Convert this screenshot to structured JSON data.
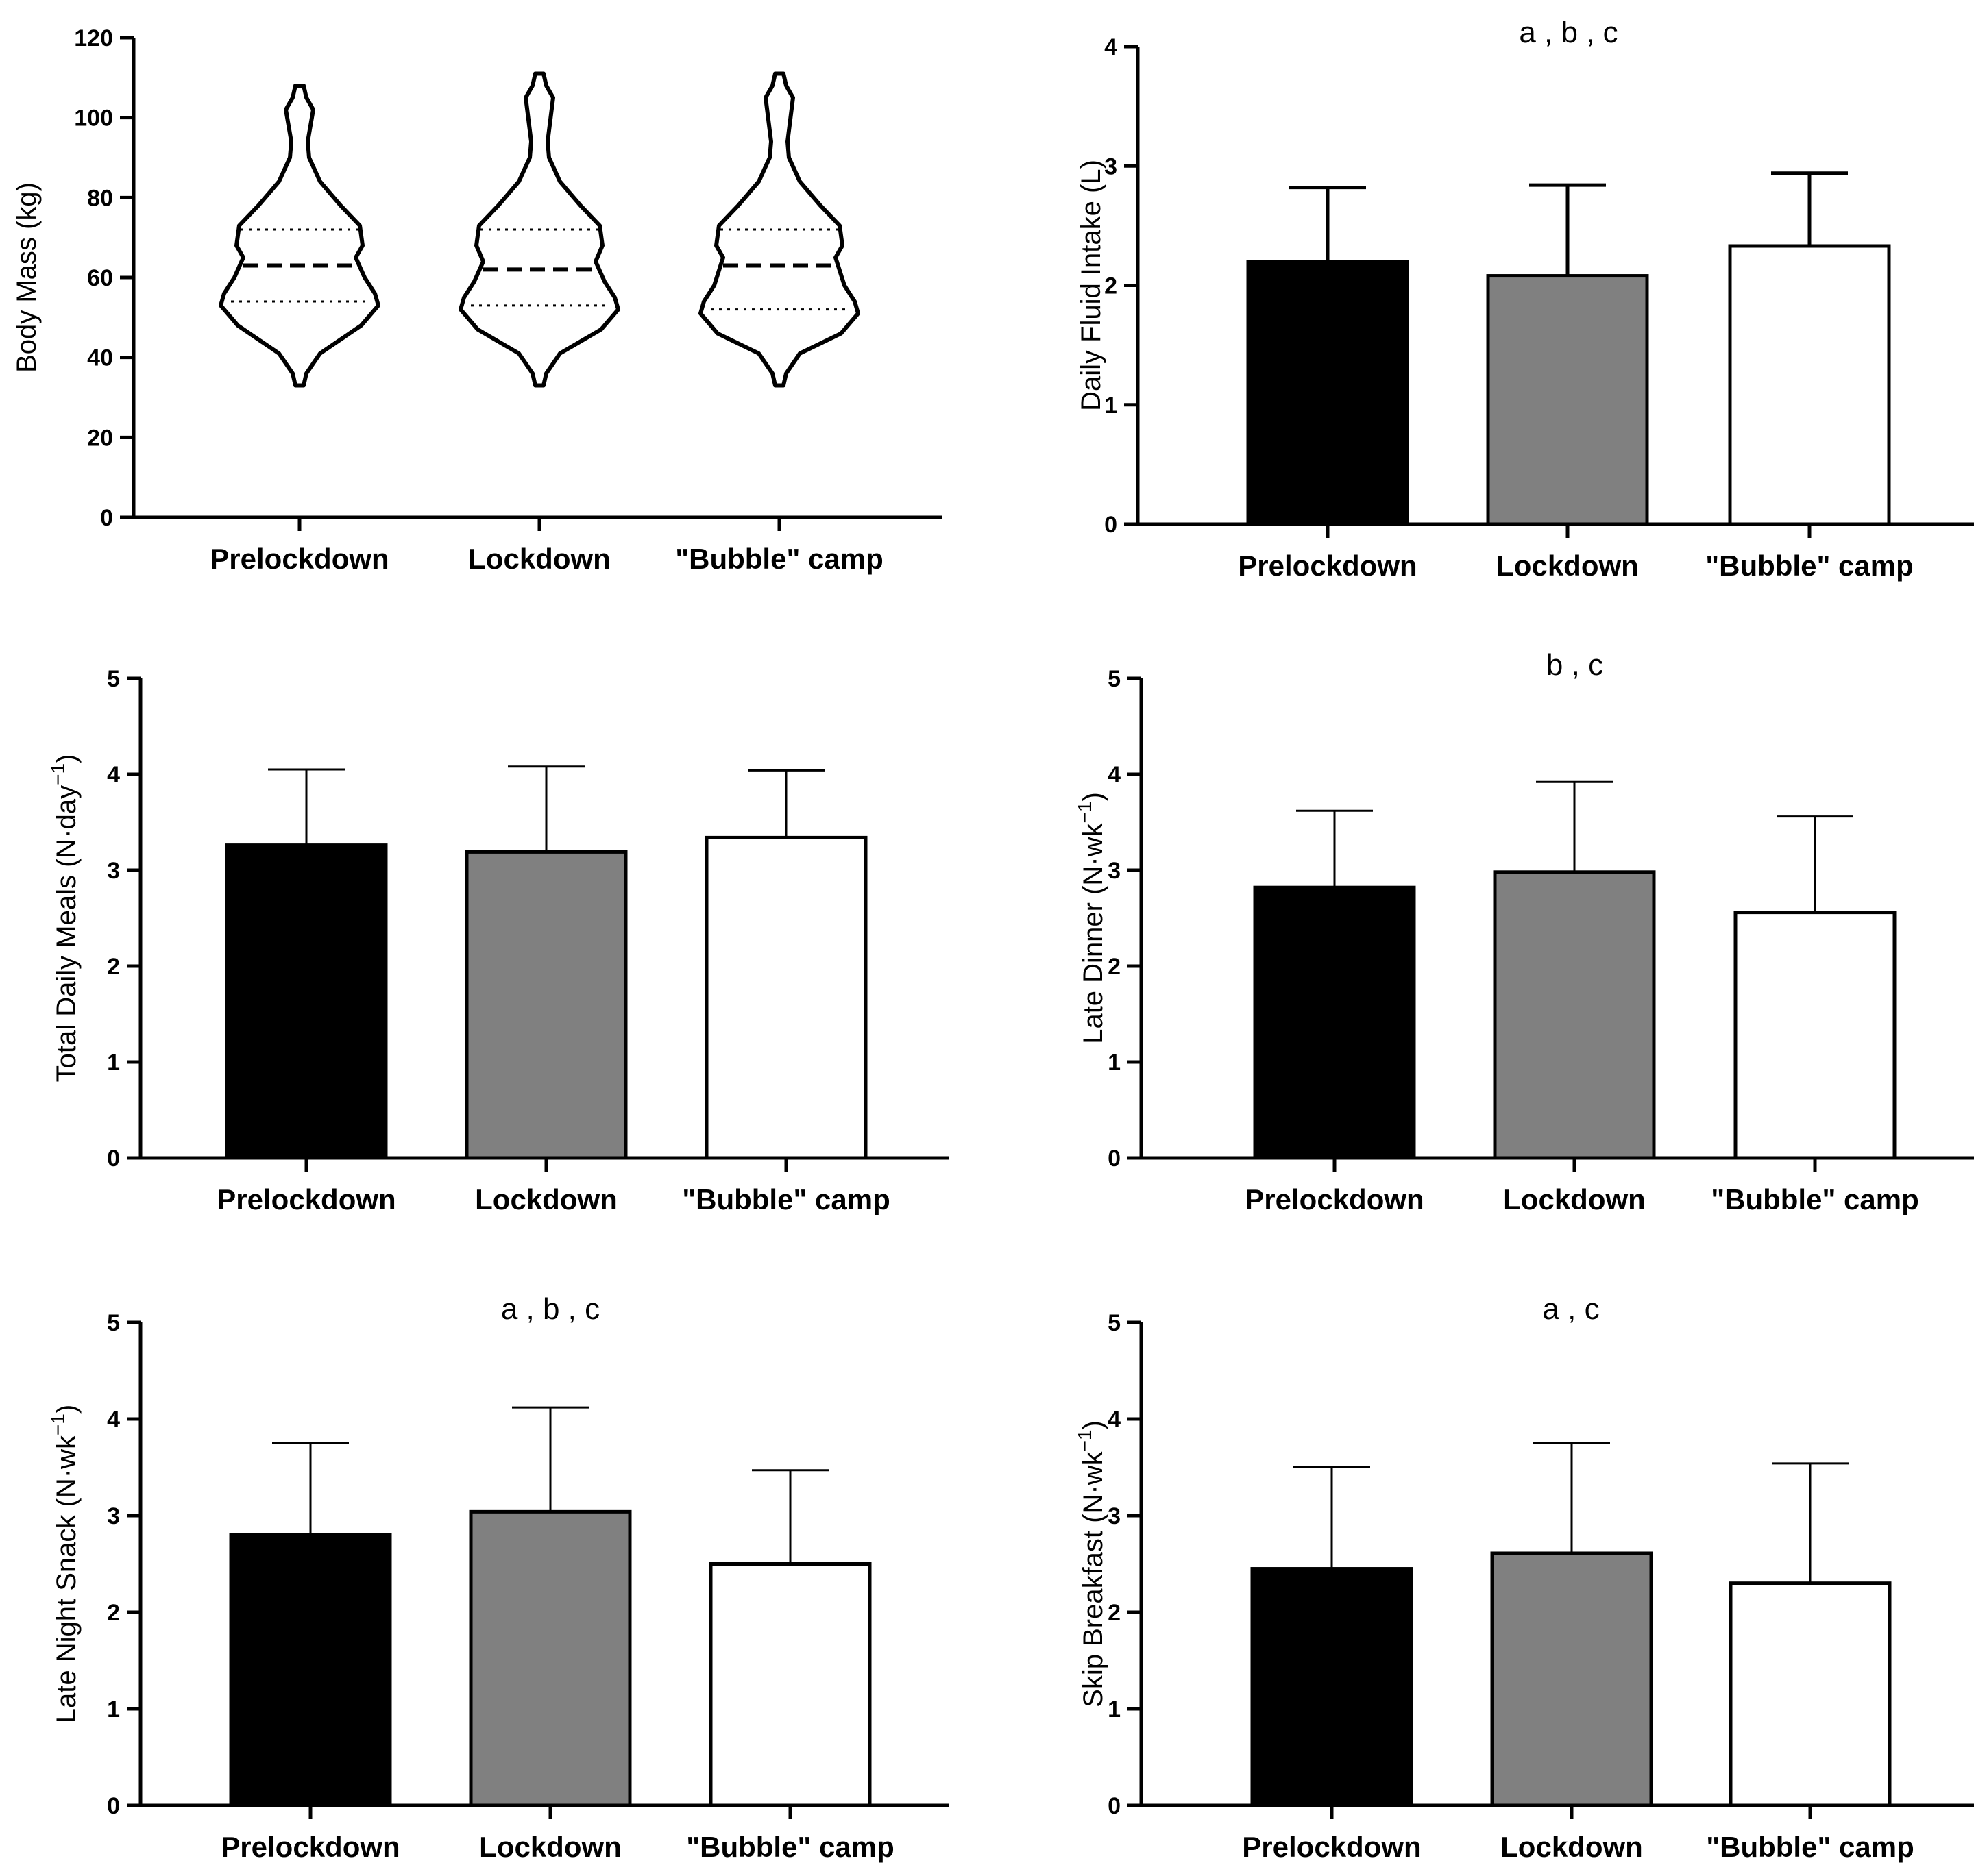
{
  "chart_data": [
    {
      "type": "violin",
      "categories": [
        "Prelockdown",
        "Lockdown",
        "\"Bubble\" camp"
      ],
      "ylabel": "Body Mass (kg)",
      "ylim": [
        0,
        120
      ],
      "yticks": [
        0,
        20,
        40,
        60,
        80,
        100,
        120
      ],
      "annotation": "",
      "series": [
        {
          "category": "Prelockdown",
          "median": 63,
          "q1": 54,
          "q3": 72,
          "min": 33,
          "max": 108
        },
        {
          "category": "Lockdown",
          "median": 62,
          "q1": 53,
          "q3": 72,
          "min": 33,
          "max": 111
        },
        {
          "category": "\"Bubble\" camp",
          "median": 63,
          "q1": 52,
          "q3": 72,
          "min": 33,
          "max": 111
        }
      ]
    },
    {
      "type": "bar",
      "categories": [
        "Prelockdown",
        "Lockdown",
        "\"Bubble\" camp"
      ],
      "values": [
        2.2,
        2.08,
        2.33
      ],
      "errors": [
        0.62,
        0.76,
        0.61
      ],
      "ylabel": "Daily Fluid Intake (L)",
      "ylim": [
        0,
        4
      ],
      "yticks": [
        0,
        1,
        2,
        3,
        4
      ],
      "annotation": "a , b , c",
      "colors": [
        "#000000",
        "#808080",
        "#ffffff"
      ]
    },
    {
      "type": "bar",
      "categories": [
        "Prelockdown",
        "Lockdown",
        "\"Bubble\" camp"
      ],
      "values": [
        3.26,
        3.19,
        3.34
      ],
      "errors": [
        0.79,
        0.89,
        0.7
      ],
      "ylabel": "Total Daily Meals (N·day",
      "ylabel_sup": "−1",
      "ylabel_suffix": ")",
      "ylim": [
        0,
        5
      ],
      "yticks": [
        0,
        1,
        2,
        3,
        4,
        5
      ],
      "annotation": "",
      "colors": [
        "#000000",
        "#808080",
        "#ffffff"
      ]
    },
    {
      "type": "bar",
      "categories": [
        "Prelockdown",
        "Lockdown",
        "\"Bubble\" camp"
      ],
      "values": [
        2.82,
        2.98,
        2.56
      ],
      "errors": [
        0.8,
        0.94,
        1.0
      ],
      "ylabel": "Late Dinner (N·wk",
      "ylabel_sup": "−1",
      "ylabel_suffix": ")",
      "ylim": [
        0,
        5
      ],
      "yticks": [
        0,
        1,
        2,
        3,
        4,
        5
      ],
      "annotation": "b , c",
      "colors": [
        "#000000",
        "#808080",
        "#ffffff"
      ]
    },
    {
      "type": "bar",
      "categories": [
        "Prelockdown",
        "Lockdown",
        "\"Bubble\" camp"
      ],
      "values": [
        2.8,
        3.04,
        2.5
      ],
      "errors": [
        0.95,
        1.08,
        0.97
      ],
      "ylabel": "Late Night Snack (N·wk",
      "ylabel_sup": "−1",
      "ylabel_suffix": ")",
      "ylim": [
        0,
        5
      ],
      "yticks": [
        0,
        1,
        2,
        3,
        4,
        5
      ],
      "annotation": "a , b , c",
      "colors": [
        "#000000",
        "#808080",
        "#ffffff"
      ]
    },
    {
      "type": "bar",
      "categories": [
        "Prelockdown",
        "Lockdown",
        "\"Bubble\" camp"
      ],
      "values": [
        2.45,
        2.61,
        2.3
      ],
      "errors": [
        1.05,
        1.14,
        1.24
      ],
      "ylabel": "Skip Breakfast (N·wk",
      "ylabel_sup": "−1",
      "ylabel_suffix": ")",
      "ylim": [
        0,
        5
      ],
      "yticks": [
        0,
        1,
        2,
        3,
        4,
        5
      ],
      "annotation": "a , c",
      "colors": [
        "#000000",
        "#808080",
        "#ffffff"
      ]
    }
  ]
}
